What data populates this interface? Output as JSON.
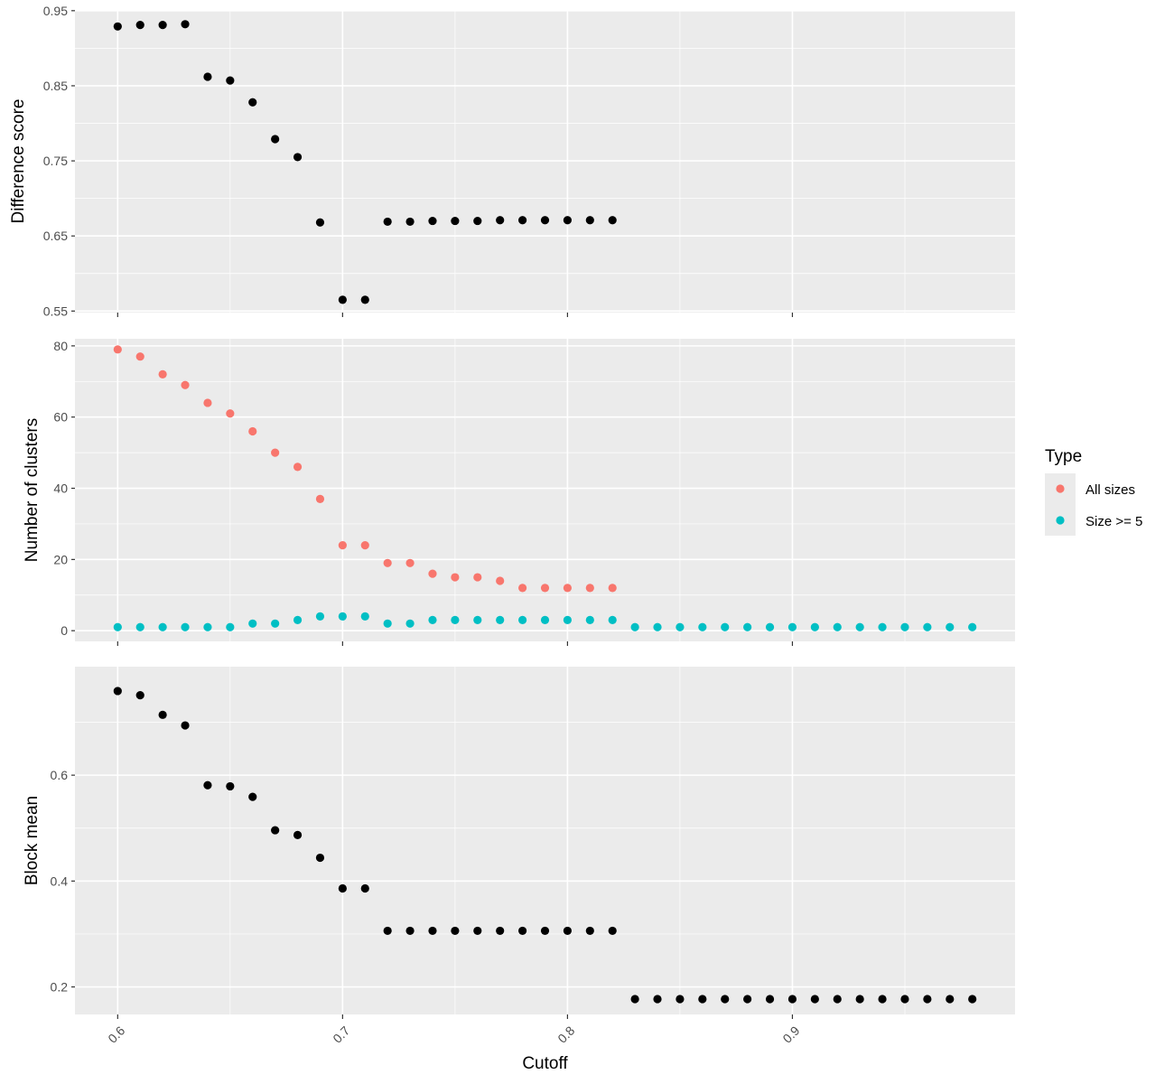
{
  "chart_data": [
    {
      "type": "scatter",
      "panel": "top",
      "ylabel": "Difference score",
      "xlim": [
        0.581,
        0.999
      ],
      "ylim": [
        0.548,
        0.951
      ],
      "yticks": [
        0.55,
        0.65,
        0.75,
        0.85,
        0.95
      ],
      "ytick_labels": [
        "0.55",
        "0.65",
        "0.75",
        "0.85",
        "0.95"
      ],
      "grid": true,
      "series": [
        {
          "color": "#000000",
          "x": [
            0.6,
            0.61,
            0.62,
            0.63,
            0.64,
            0.65,
            0.66,
            0.67,
            0.68,
            0.69,
            0.7,
            0.71,
            0.72,
            0.73,
            0.74,
            0.75,
            0.76,
            0.77,
            0.78,
            0.79,
            0.8,
            0.81,
            0.82
          ],
          "y": [
            0.929,
            0.931,
            0.931,
            0.932,
            0.862,
            0.857,
            0.828,
            0.779,
            0.755,
            0.668,
            0.565,
            0.565,
            0.669,
            0.669,
            0.67,
            0.67,
            0.67,
            0.671,
            0.671,
            0.671,
            0.671,
            0.671,
            0.671
          ]
        }
      ]
    },
    {
      "type": "scatter",
      "panel": "middle",
      "ylabel": "Number of clusters",
      "xlim": [
        0.581,
        0.999
      ],
      "ylim": [
        -3,
        82
      ],
      "yticks": [
        0,
        20,
        40,
        60,
        80
      ],
      "ytick_labels": [
        "0",
        "20",
        "40",
        "60",
        "80"
      ],
      "grid": true,
      "legend": {
        "title": "Type",
        "position": "right"
      },
      "series": [
        {
          "name": "All sizes",
          "color": "#F8766D",
          "x": [
            0.6,
            0.61,
            0.62,
            0.63,
            0.64,
            0.65,
            0.66,
            0.67,
            0.68,
            0.69,
            0.7,
            0.71,
            0.72,
            0.73,
            0.74,
            0.75,
            0.76,
            0.77,
            0.78,
            0.79,
            0.8,
            0.81,
            0.82
          ],
          "y": [
            79,
            77,
            72,
            69,
            64,
            61,
            56,
            50,
            46,
            37,
            24,
            24,
            19,
            19,
            16,
            15,
            15,
            14,
            12,
            12,
            12,
            12,
            12
          ]
        },
        {
          "name": "Size >= 5",
          "color": "#00BFC4",
          "x": [
            0.6,
            0.61,
            0.62,
            0.63,
            0.64,
            0.65,
            0.66,
            0.67,
            0.68,
            0.69,
            0.7,
            0.71,
            0.72,
            0.73,
            0.74,
            0.75,
            0.76,
            0.77,
            0.78,
            0.79,
            0.8,
            0.81,
            0.82,
            0.83,
            0.84,
            0.85,
            0.86,
            0.87,
            0.88,
            0.89,
            0.9,
            0.91,
            0.92,
            0.93,
            0.94,
            0.95,
            0.96,
            0.97,
            0.98
          ],
          "y": [
            1,
            1,
            1,
            1,
            1,
            1,
            2,
            2,
            3,
            4,
            4,
            4,
            2,
            2,
            3,
            3,
            3,
            3,
            3,
            3,
            3,
            3,
            3,
            1,
            1,
            1,
            1,
            1,
            1,
            1,
            1,
            1,
            1,
            1,
            1,
            1,
            1,
            1,
            1
          ]
        }
      ]
    },
    {
      "type": "scatter",
      "panel": "bottom",
      "ylabel": "Block mean",
      "xlabel": "Cutoff",
      "xlim": [
        0.581,
        0.999
      ],
      "ylim": [
        0.148,
        0.805
      ],
      "yticks": [
        0.2,
        0.4,
        0.6
      ],
      "ytick_labels": [
        "0.2",
        "0.4",
        "0.6"
      ],
      "xticks": [
        0.6,
        0.7,
        0.8,
        0.9
      ],
      "xtick_labels": [
        "0.6",
        "0.7",
        "0.8",
        "0.9"
      ],
      "grid": true,
      "series": [
        {
          "color": "#000000",
          "x": [
            0.6,
            0.61,
            0.62,
            0.63,
            0.64,
            0.65,
            0.66,
            0.67,
            0.68,
            0.69,
            0.7,
            0.71,
            0.72,
            0.73,
            0.74,
            0.75,
            0.76,
            0.77,
            0.78,
            0.79,
            0.8,
            0.81,
            0.82,
            0.83,
            0.84,
            0.85,
            0.86,
            0.87,
            0.88,
            0.89,
            0.9,
            0.91,
            0.92,
            0.93,
            0.94,
            0.95,
            0.96,
            0.97,
            0.98
          ],
          "y": [
            0.759,
            0.751,
            0.714,
            0.694,
            0.581,
            0.579,
            0.559,
            0.496,
            0.487,
            0.444,
            0.386,
            0.386,
            0.306,
            0.306,
            0.306,
            0.306,
            0.306,
            0.306,
            0.306,
            0.306,
            0.306,
            0.306,
            0.306,
            0.177,
            0.177,
            0.177,
            0.177,
            0.177,
            0.177,
            0.177,
            0.177,
            0.177,
            0.177,
            0.177,
            0.177,
            0.177,
            0.177,
            0.177,
            0.177
          ]
        }
      ]
    }
  ]
}
